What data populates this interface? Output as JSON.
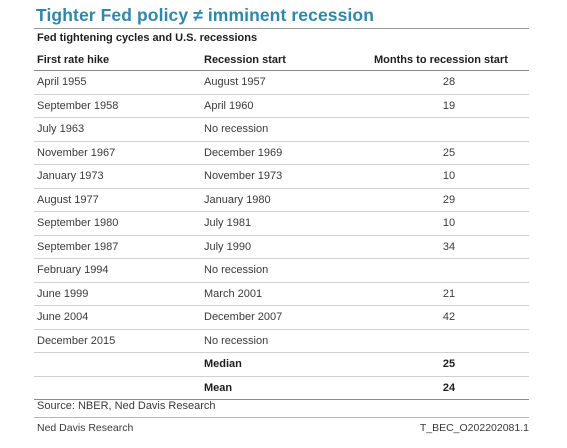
{
  "title": "Tighter Fed policy ≠ imminent recession",
  "subtitle": "Fed tightening cycles and U.S. recessions",
  "table": {
    "headers": [
      "First rate hike",
      "Recession start",
      "Months to recession start"
    ],
    "rows": [
      {
        "first_hike": "April 1955",
        "recession_start": "August 1957",
        "months": "28"
      },
      {
        "first_hike": "September 1958",
        "recession_start": "April 1960",
        "months": "19"
      },
      {
        "first_hike": "July 1963",
        "recession_start": "No recession",
        "months": ""
      },
      {
        "first_hike": "November 1967",
        "recession_start": "December 1969",
        "months": "25"
      },
      {
        "first_hike": "January 1973",
        "recession_start": "November 1973",
        "months": "10"
      },
      {
        "first_hike": "August 1977",
        "recession_start": "January 1980",
        "months": "29"
      },
      {
        "first_hike": "September 1980",
        "recession_start": "July 1981",
        "months": "10"
      },
      {
        "first_hike": "September 1987",
        "recession_start": "July 1990",
        "months": "34"
      },
      {
        "first_hike": "February 1994",
        "recession_start": "No recession",
        "months": ""
      },
      {
        "first_hike": "June 1999",
        "recession_start": "March 2001",
        "months": "21"
      },
      {
        "first_hike": "June 2004",
        "recession_start": "December 2007",
        "months": "42"
      },
      {
        "first_hike": "December 2015",
        "recession_start": "No recession",
        "months": ""
      }
    ],
    "summary": [
      {
        "label": "Median",
        "value": "25"
      },
      {
        "label": "Mean",
        "value": "24"
      }
    ]
  },
  "source": "Source: NBER, Ned Davis Research",
  "footer": {
    "left": "Ned Davis Research",
    "right": "T_BEC_O202202081.1"
  },
  "colors": {
    "title": "#2f88a8",
    "rule": "#8a8a8a"
  }
}
